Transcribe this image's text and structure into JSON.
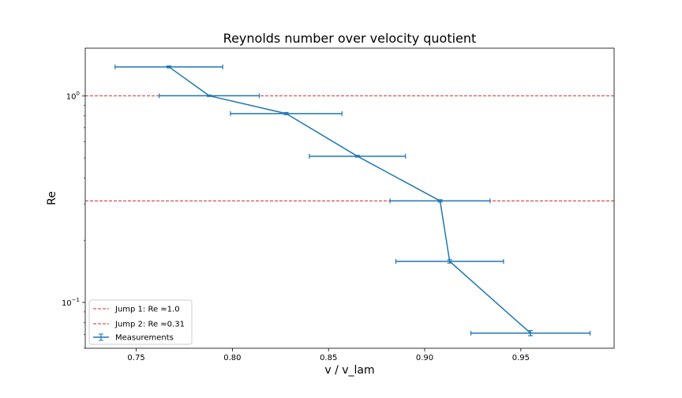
{
  "chart_data": {
    "type": "line",
    "title": "Reynolds number over velocity quotient",
    "xlabel": "v / v_lam",
    "ylabel": "Re",
    "xlim": [
      0.7235,
      0.9985
    ],
    "ylim": [
      0.06,
      1.7
    ],
    "yscale": "log",
    "grid": false,
    "legend_position": "lower-left",
    "x_ticks": [
      0.75,
      0.8,
      0.85,
      0.9,
      0.95
    ],
    "x_tick_labels": [
      "0.75",
      "0.80",
      "0.85",
      "0.90",
      "0.95"
    ],
    "y_ticks": [
      1.0,
      0.1
    ],
    "y_tick_labels": [
      {
        "base": "10",
        "exp": "0"
      },
      {
        "base": "10",
        "exp": "−1"
      }
    ],
    "series": [
      {
        "name": "Measurements",
        "color": "#1f77b4",
        "points": [
          {
            "x": 0.767,
            "y": 1.38,
            "xerr": 0.028,
            "yerr": 0.015
          },
          {
            "x": 0.788,
            "y": 1.0,
            "xerr": 0.026,
            "yerr": 0.008
          },
          {
            "x": 0.828,
            "y": 0.82,
            "xerr": 0.029,
            "yerr": 0.01
          },
          {
            "x": 0.865,
            "y": 0.51,
            "xerr": 0.025,
            "yerr": 0.005
          },
          {
            "x": 0.908,
            "y": 0.31,
            "xerr": 0.026,
            "yerr": 0.004
          },
          {
            "x": 0.913,
            "y": 0.158,
            "xerr": 0.028,
            "yerr": 0.003
          },
          {
            "x": 0.955,
            "y": 0.071,
            "xerr": 0.031,
            "yerr": 0.002
          }
        ]
      }
    ],
    "hlines": [
      {
        "name": "Jump 1: Re  ≈1.0",
        "y": 1.0,
        "color": "#d62728"
      },
      {
        "name": "Jump 2: Re  ≈0.31",
        "y": 0.31,
        "color": "#d62728"
      }
    ]
  }
}
